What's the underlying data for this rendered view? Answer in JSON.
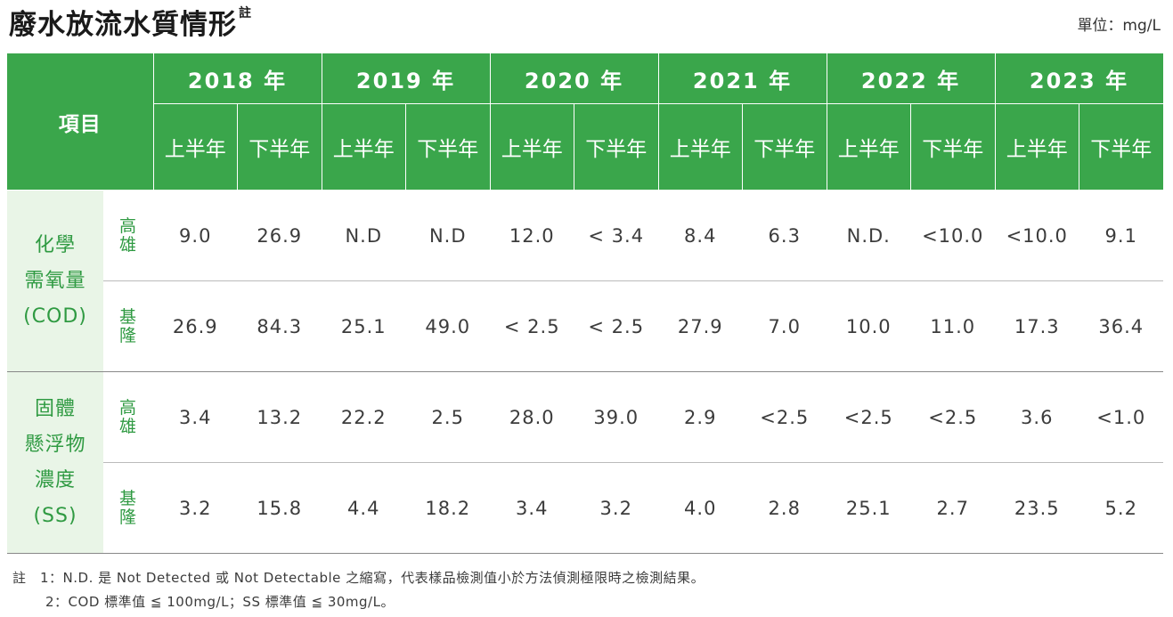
{
  "title": "廢水放流水質情形",
  "title_note": "註",
  "unit": "單位：mg/L",
  "item_header": "項目",
  "years": [
    "2018 年",
    "2019 年",
    "2020 年",
    "2021 年",
    "2022 年",
    "2023 年"
  ],
  "halves": [
    "上半年",
    "下半年",
    "上半年",
    "下半年",
    "上半年",
    "下半年",
    "上半年",
    "下半年",
    "上半年",
    "下半年",
    "上半年",
    "下半年"
  ],
  "groups": [
    {
      "param_lines": [
        "化學",
        "需氧量",
        "(COD)"
      ],
      "rows": [
        {
          "loc": [
            "高",
            "雄"
          ],
          "values": [
            "9.0",
            "26.9",
            "N.D",
            "N.D",
            "12.0",
            "< 3.4",
            "8.4",
            "6.3",
            "N.D.",
            "<10.0",
            "<10.0",
            "9.1"
          ]
        },
        {
          "loc": [
            "基",
            "隆"
          ],
          "values": [
            "26.9",
            "84.3",
            "25.1",
            "49.0",
            "< 2.5",
            "< 2.5",
            "27.9",
            "7.0",
            "10.0",
            "11.0",
            "17.3",
            "36.4"
          ]
        }
      ]
    },
    {
      "param_lines": [
        "固體",
        "懸浮物",
        "濃度",
        "(SS)"
      ],
      "rows": [
        {
          "loc": [
            "高",
            "雄"
          ],
          "values": [
            "3.4",
            "13.2",
            "22.2",
            "2.5",
            "28.0",
            "39.0",
            "2.9",
            "<2.5",
            "<2.5",
            "<2.5",
            "3.6",
            "<1.0"
          ]
        },
        {
          "loc": [
            "基",
            "隆"
          ],
          "values": [
            "3.2",
            "15.8",
            "4.4",
            "18.2",
            "3.4",
            "3.2",
            "4.0",
            "2.8",
            "25.1",
            "2.7",
            "23.5",
            "5.2"
          ]
        }
      ]
    }
  ],
  "notes": [
    "註　1：N.D. 是 Not Detected 或 Not Detectable 之縮寫，代表樣品檢測值小於方法偵測極限時之檢測結果。",
    "2：COD 標準值 ≦ 100mg/L；SS 標準值 ≦ 30mg/L。"
  ],
  "colors": {
    "header_bg": "#3aa64b",
    "param_bg": "#e9f5e7",
    "green_text": "#2f9a42"
  }
}
